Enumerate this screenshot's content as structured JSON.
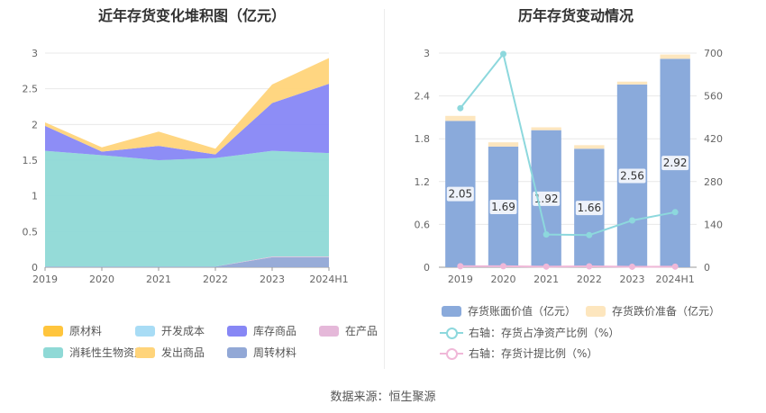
{
  "left_chart": {
    "title": "近年存货变化堆积图（亿元）",
    "legend": [
      "原材料",
      "开发成本",
      "库存商品",
      "在产品",
      "消耗性生物资产",
      "发出商品",
      "周转材料"
    ],
    "colors": {
      "原材料": "#ffc53d",
      "开发成本": "#a8dcf5",
      "库存商品": "#8787f5",
      "在产品": "#e5b8d9",
      "消耗性生物资产": "#8fd9d6",
      "发出商品": "#ffd47a",
      "周转材料": "#92a8d6"
    }
  },
  "right_chart": {
    "title": "历年存货变动情况",
    "legend": {
      "bar1": "存货账面价值（亿元）",
      "bar2": "存货跌价准备（亿元）",
      "line1": "右轴：存货占净资产比例（%）",
      "line2": "右轴：存货计提比例（%）"
    },
    "colors": {
      "bar1": "#8aaadb",
      "bar2": "#fde6be",
      "line1": "#8dd8dd",
      "line2": "#f0b8d8"
    }
  },
  "chart_data": [
    {
      "type": "area",
      "title": "近年存货变化堆积图（亿元）",
      "categories": [
        "2019",
        "2020",
        "2021",
        "2022",
        "2023",
        "2024H1"
      ],
      "ylim": [
        0,
        3
      ],
      "yticks": [
        "0",
        "0.5",
        "1",
        "1.5",
        "2",
        "2.5",
        "3"
      ],
      "grid": true,
      "legend_position": "bottom",
      "stacked": true,
      "series": [
        {
          "name": "周转材料",
          "values": [
            0.01,
            0.01,
            0.01,
            0.01,
            0.14,
            0.14
          ]
        },
        {
          "name": "在产品",
          "values": [
            0.0,
            0.0,
            0.0,
            0.0,
            0.01,
            0.01
          ]
        },
        {
          "name": "消耗性生物资产",
          "values": [
            1.62,
            1.56,
            1.49,
            1.52,
            1.48,
            1.45
          ]
        },
        {
          "name": "开发成本",
          "values": [
            0.0,
            0.0,
            0.0,
            0.0,
            0.0,
            0.0
          ]
        },
        {
          "name": "库存商品",
          "values": [
            0.35,
            0.05,
            0.2,
            0.05,
            0.67,
            0.97
          ]
        },
        {
          "name": "发出商品",
          "values": [
            0.05,
            0.06,
            0.2,
            0.08,
            0.26,
            0.36
          ]
        },
        {
          "name": "原材料",
          "values": [
            0.0,
            0.0,
            0.0,
            0.0,
            0.0,
            0.0
          ]
        }
      ]
    },
    {
      "type": "bar",
      "title": "历年存货变动情况",
      "categories": [
        "2019",
        "2020",
        "2021",
        "2022",
        "2023",
        "2024H1"
      ],
      "ylim": [
        0,
        3
      ],
      "yticks": [
        "0",
        "0.6",
        "1.2",
        "1.8",
        "2.4",
        "3"
      ],
      "y2lim": [
        0,
        700
      ],
      "y2ticks": [
        "0",
        "140",
        "280",
        "420",
        "560",
        "700"
      ],
      "grid": true,
      "legend_position": "bottom",
      "stacked": true,
      "series": [
        {
          "name": "存货账面价值（亿元）",
          "axis": "left",
          "values": [
            2.05,
            1.69,
            1.92,
            1.66,
            2.56,
            2.92
          ],
          "labels": [
            "2.05",
            "1.69",
            "1.92",
            "1.66",
            "2.56",
            "2.92"
          ]
        },
        {
          "name": "存货跌价准备（亿元）",
          "axis": "left",
          "values": [
            0.07,
            0.06,
            0.04,
            0.05,
            0.04,
            0.06
          ]
        },
        {
          "name": "右轴：存货占净资产比例（%）",
          "axis": "right",
          "type": "line",
          "values": [
            520,
            697,
            107,
            105,
            153,
            180
          ]
        },
        {
          "name": "右轴：存货计提比例（%）",
          "axis": "right",
          "type": "line",
          "values": [
            3.3,
            3.4,
            2.0,
            2.9,
            1.6,
            2.0
          ]
        }
      ]
    }
  ],
  "source": "数据来源：恒生聚源"
}
